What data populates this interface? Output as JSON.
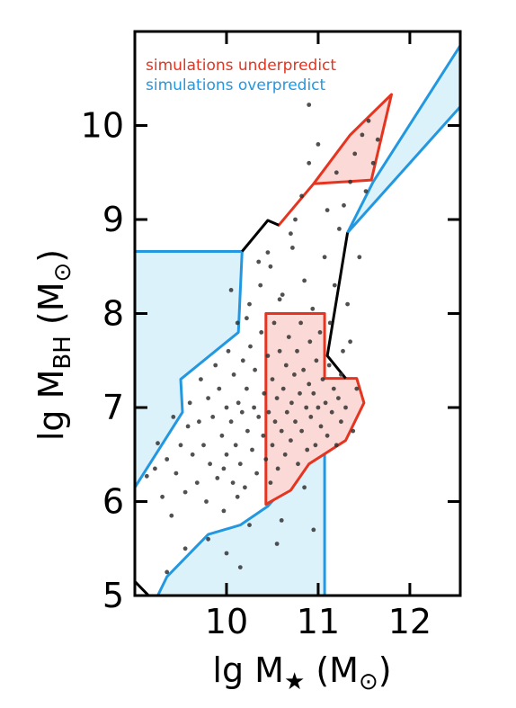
{
  "chart_data": {
    "type": "scatter",
    "xlim": [
      9.0,
      12.55
    ],
    "ylim": [
      5.0,
      11.0
    ],
    "x_ticks": [
      {
        "value": 10,
        "label": "10"
      },
      {
        "value": 11,
        "label": "11"
      },
      {
        "value": 12,
        "label": "12"
      }
    ],
    "y_ticks": [
      {
        "value": 5,
        "label": "5"
      },
      {
        "value": 6,
        "label": "6"
      },
      {
        "value": 7,
        "label": "7"
      },
      {
        "value": 8,
        "label": "8"
      },
      {
        "value": 9,
        "label": "9"
      },
      {
        "value": 10,
        "label": "10"
      }
    ],
    "xlabel": {
      "pre": "lg M",
      "sub": "★",
      "post": " (M",
      "sun": "⊙",
      "end": ")"
    },
    "ylabel": {
      "pre": "lg M",
      "sub": "BH",
      "post": " (M",
      "sun": "⊙",
      "end": ")"
    },
    "grid": false,
    "legend": {
      "position": "top-left",
      "entries": [
        {
          "label": "simulations underpredict",
          "color": "#e5341f"
        },
        {
          "label": "simulations overpredict",
          "color": "#2398e0"
        }
      ]
    },
    "colors": {
      "under_fill": "#fbd9d6",
      "under_edge": "#e5341f",
      "over_fill": "#dcf2fb",
      "over_edge": "#2398e0",
      "envelope": "#000000",
      "points": "#333333"
    },
    "regions": {
      "underpredict": [
        [
          [
            10.57,
            8.94
          ],
          [
            10.95,
            9.38
          ],
          [
            11.58,
            9.42
          ],
          [
            11.8,
            10.33
          ],
          [
            11.35,
            9.9
          ],
          [
            10.95,
            9.38
          ]
        ],
        [
          [
            10.43,
            5.97
          ],
          [
            10.43,
            8.0
          ],
          [
            11.07,
            8.0
          ],
          [
            11.07,
            7.31
          ],
          [
            11.42,
            7.31
          ],
          [
            11.5,
            7.05
          ],
          [
            11.3,
            6.65
          ],
          [
            10.9,
            6.4
          ],
          [
            10.7,
            6.12
          ],
          [
            10.43,
            5.97
          ]
        ]
      ],
      "overpredict": [
        [
          [
            9.0,
            6.15
          ],
          [
            9.52,
            6.95
          ],
          [
            9.5,
            7.3
          ],
          [
            10.13,
            7.8
          ],
          [
            10.17,
            8.66
          ],
          [
            9.0,
            8.66
          ]
        ],
        [
          [
            9.25,
            5.0
          ],
          [
            11.07,
            5.0
          ],
          [
            11.07,
            6.9
          ],
          [
            10.9,
            6.45
          ],
          [
            10.45,
            5.95
          ],
          [
            10.15,
            5.75
          ],
          [
            9.8,
            5.65
          ],
          [
            9.35,
            5.2
          ]
        ],
        [
          [
            11.32,
            8.86
          ],
          [
            11.6,
            9.4
          ],
          [
            12.55,
            10.85
          ],
          [
            12.55,
            10.2
          ],
          [
            11.32,
            8.86
          ]
        ]
      ],
      "envelope": [
        [
          [
            10.17,
            8.66
          ],
          [
            10.45,
            8.99
          ],
          [
            10.57,
            8.94
          ]
        ],
        [
          [
            11.32,
            8.86
          ],
          [
            11.1,
            7.55
          ],
          [
            11.3,
            7.31
          ]
        ],
        [
          [
            9.0,
            5.15
          ],
          [
            9.15,
            5.0
          ]
        ]
      ]
    },
    "points": [
      [
        9.13,
        6.27
      ],
      [
        9.22,
        6.35
      ],
      [
        9.25,
        6.62
      ],
      [
        9.3,
        6.05
      ],
      [
        9.35,
        6.45
      ],
      [
        9.4,
        5.85
      ],
      [
        9.42,
        6.9
      ],
      [
        9.45,
        6.3
      ],
      [
        9.5,
        6.6
      ],
      [
        9.55,
        6.1
      ],
      [
        9.58,
        6.8
      ],
      [
        9.6,
        7.05
      ],
      [
        9.63,
        6.5
      ],
      [
        9.68,
        6.2
      ],
      [
        9.7,
        6.85
      ],
      [
        9.72,
        7.3
      ],
      [
        9.75,
        6.6
      ],
      [
        9.78,
        6.0
      ],
      [
        9.8,
        7.1
      ],
      [
        9.82,
        6.4
      ],
      [
        9.85,
        6.9
      ],
      [
        9.88,
        7.45
      ],
      [
        9.9,
        6.25
      ],
      [
        9.92,
        7.2
      ],
      [
        9.95,
        6.7
      ],
      [
        9.97,
        5.9
      ],
      [
        10.0,
        7.0
      ],
      [
        10.0,
        6.5
      ],
      [
        10.02,
        7.6
      ],
      [
        10.05,
        6.85
      ],
      [
        10.07,
        6.2
      ],
      [
        10.08,
        7.35
      ],
      [
        10.1,
        6.6
      ],
      [
        10.12,
        7.9
      ],
      [
        10.13,
        7.05
      ],
      [
        10.15,
        6.4
      ],
      [
        10.17,
        6.95
      ],
      [
        10.18,
        7.5
      ],
      [
        10.2,
        6.15
      ],
      [
        10.22,
        7.2
      ],
      [
        10.23,
        6.75
      ],
      [
        10.25,
        8.1
      ],
      [
        10.26,
        7.65
      ],
      [
        10.28,
        6.55
      ],
      [
        10.3,
        7.0
      ],
      [
        10.31,
        7.4
      ],
      [
        10.33,
        6.3
      ],
      [
        10.35,
        6.9
      ],
      [
        10.37,
        8.3
      ],
      [
        10.38,
        7.8
      ],
      [
        10.4,
        6.7
      ],
      [
        10.41,
        7.15
      ],
      [
        10.43,
        6.45
      ],
      [
        10.45,
        7.55
      ],
      [
        10.46,
        6.95
      ],
      [
        10.48,
        8.5
      ],
      [
        10.5,
        7.3
      ],
      [
        10.5,
        6.6
      ],
      [
        10.52,
        7.9
      ],
      [
        10.53,
        6.85
      ],
      [
        10.55,
        7.1
      ],
      [
        10.56,
        6.35
      ],
      [
        10.58,
        7.6
      ],
      [
        10.6,
        6.75
      ],
      [
        10.61,
        8.2
      ],
      [
        10.62,
        7.2
      ],
      [
        10.64,
        6.5
      ],
      [
        10.65,
        7.45
      ],
      [
        10.66,
        6.95
      ],
      [
        10.68,
        7.75
      ],
      [
        10.7,
        6.65
      ],
      [
        10.71,
        7.05
      ],
      [
        10.72,
        8.7
      ],
      [
        10.74,
        7.35
      ],
      [
        10.75,
        6.85
      ],
      [
        10.77,
        7.6
      ],
      [
        10.78,
        6.4
      ],
      [
        10.8,
        7.15
      ],
      [
        10.81,
        7.9
      ],
      [
        10.82,
        6.75
      ],
      [
        10.84,
        7.4
      ],
      [
        10.85,
        8.35
      ],
      [
        10.87,
        7.0
      ],
      [
        10.88,
        6.55
      ],
      [
        10.9,
        7.25
      ],
      [
        10.91,
        7.7
      ],
      [
        10.92,
        6.9
      ],
      [
        10.94,
        8.05
      ],
      [
        10.95,
        7.15
      ],
      [
        10.97,
        6.6
      ],
      [
        10.98,
        7.5
      ],
      [
        11.0,
        7.0
      ],
      [
        11.02,
        7.8
      ],
      [
        11.03,
        6.8
      ],
      [
        11.05,
        7.3
      ],
      [
        11.07,
        8.6
      ],
      [
        11.08,
        7.05
      ],
      [
        11.1,
        6.7
      ],
      [
        11.12,
        7.45
      ],
      [
        11.13,
        7.9
      ],
      [
        11.15,
        6.95
      ],
      [
        11.17,
        7.2
      ],
      [
        11.18,
        8.3
      ],
      [
        11.2,
        6.6
      ],
      [
        11.22,
        7.1
      ],
      [
        11.23,
        8.9
      ],
      [
        11.25,
        6.85
      ],
      [
        11.27,
        7.6
      ],
      [
        11.28,
        9.15
      ],
      [
        11.3,
        7.0
      ],
      [
        11.32,
        8.1
      ],
      [
        11.35,
        9.4
      ],
      [
        11.38,
        6.75
      ],
      [
        11.4,
        9.7
      ],
      [
        11.42,
        7.2
      ],
      [
        11.45,
        8.6
      ],
      [
        11.48,
        9.9
      ],
      [
        11.52,
        9.3
      ],
      [
        11.55,
        10.05
      ],
      [
        11.6,
        9.6
      ],
      [
        11.65,
        9.85
      ],
      [
        10.82,
        9.25
      ],
      [
        10.75,
        9.0
      ],
      [
        10.9,
        9.6
      ],
      [
        11.0,
        9.8
      ],
      [
        11.2,
        9.5
      ],
      [
        11.1,
        9.1
      ],
      [
        10.7,
        8.85
      ],
      [
        10.45,
        8.65
      ],
      [
        10.58,
        8.15
      ],
      [
        10.35,
        8.55
      ],
      [
        10.0,
        5.45
      ],
      [
        10.25,
        5.75
      ],
      [
        10.6,
        5.8
      ],
      [
        10.85,
        6.15
      ],
      [
        9.35,
        5.25
      ],
      [
        9.55,
        5.5
      ],
      [
        9.8,
        5.6
      ],
      [
        10.15,
        5.3
      ],
      [
        10.55,
        5.55
      ],
      [
        10.95,
        5.7
      ],
      [
        10.9,
        10.22
      ],
      [
        10.12,
        6.05
      ],
      [
        9.97,
        6.35
      ],
      [
        10.48,
        6.2
      ],
      [
        11.25,
        7.35
      ],
      [
        11.35,
        7.7
      ],
      [
        10.22,
        7.95
      ],
      [
        10.05,
        8.25
      ]
    ]
  }
}
